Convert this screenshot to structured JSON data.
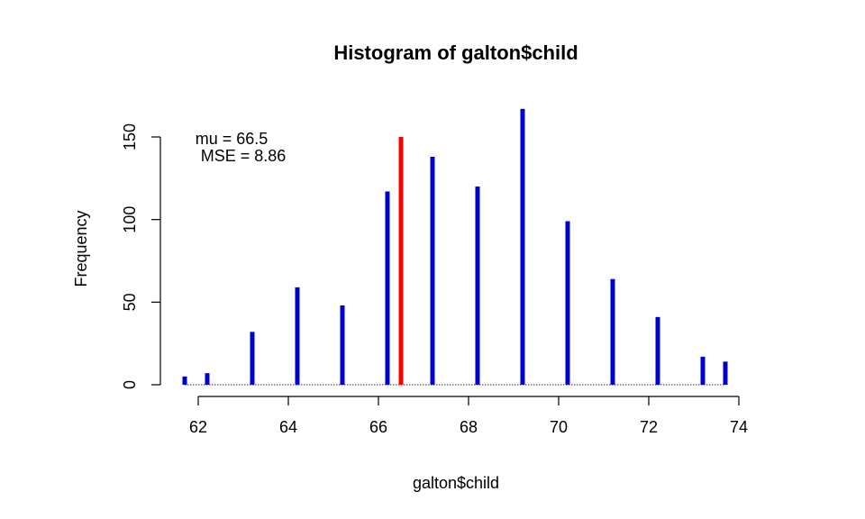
{
  "chart_data": {
    "type": "bar",
    "title": "Histogram of galton$child",
    "xlabel": "galton$child",
    "ylabel": "Frequency",
    "xlim": [
      61.7,
      73.7
    ],
    "ylim": [
      0,
      167
    ],
    "x_ticks": [
      62,
      64,
      66,
      68,
      70,
      72,
      74
    ],
    "y_ticks": [
      0,
      50,
      100,
      150
    ],
    "bar_color": "#0000CC",
    "mean_line": {
      "x": 66.5,
      "height": 150,
      "color": "#FF0000"
    },
    "annotations": {
      "mu": "mu =  66.5",
      "mse": "MSE =  8.86"
    },
    "bars": [
      {
        "x": 61.7,
        "y": 5
      },
      {
        "x": 62.2,
        "y": 7
      },
      {
        "x": 63.2,
        "y": 32
      },
      {
        "x": 64.2,
        "y": 59
      },
      {
        "x": 65.2,
        "y": 48
      },
      {
        "x": 66.2,
        "y": 117
      },
      {
        "x": 67.2,
        "y": 138
      },
      {
        "x": 68.2,
        "y": 120
      },
      {
        "x": 69.2,
        "y": 167
      },
      {
        "x": 70.2,
        "y": 99
      },
      {
        "x": 71.2,
        "y": 64
      },
      {
        "x": 72.2,
        "y": 41
      },
      {
        "x": 73.2,
        "y": 17
      },
      {
        "x": 73.7,
        "y": 14
      }
    ]
  }
}
